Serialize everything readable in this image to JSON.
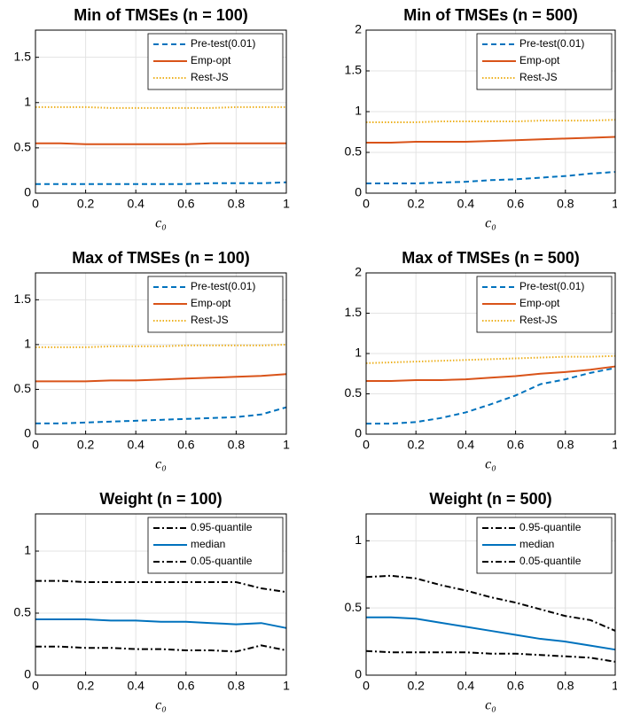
{
  "chart_data": [
    {
      "type": "line",
      "title": "Min of TMSEs (n = 100)",
      "xlabel": "c₀",
      "grid": true,
      "legend": "upper right",
      "x": [
        0,
        0.1,
        0.2,
        0.3,
        0.4,
        0.5,
        0.6,
        0.7,
        0.8,
        0.9,
        1
      ],
      "xlim": [
        0,
        1
      ],
      "xticks": [
        0,
        0.2,
        0.4,
        0.6,
        0.8,
        1
      ],
      "ylim": [
        0,
        1.8
      ],
      "yticks": [
        0,
        0.5,
        1,
        1.5
      ],
      "series": [
        {
          "name": "Pre-test(0.01)",
          "color": "#0072bd",
          "style": "dashed",
          "values": [
            0.1,
            0.1,
            0.1,
            0.1,
            0.1,
            0.1,
            0.1,
            0.11,
            0.11,
            0.11,
            0.12
          ]
        },
        {
          "name": "Emp-opt",
          "color": "#d95319",
          "style": "solid",
          "values": [
            0.55,
            0.55,
            0.54,
            0.54,
            0.54,
            0.54,
            0.54,
            0.55,
            0.55,
            0.55,
            0.55
          ]
        },
        {
          "name": "Rest-JS",
          "color": "#edb120",
          "style": "dotted",
          "values": [
            0.95,
            0.95,
            0.95,
            0.94,
            0.94,
            0.94,
            0.94,
            0.94,
            0.95,
            0.95,
            0.95
          ]
        }
      ]
    },
    {
      "type": "line",
      "title": "Min of TMSEs (n = 500)",
      "xlabel": "c₀",
      "grid": true,
      "legend": "upper right",
      "x": [
        0,
        0.1,
        0.2,
        0.3,
        0.4,
        0.5,
        0.6,
        0.7,
        0.8,
        0.9,
        1
      ],
      "xlim": [
        0,
        1
      ],
      "xticks": [
        0,
        0.2,
        0.4,
        0.6,
        0.8,
        1
      ],
      "ylim": [
        0,
        2
      ],
      "yticks": [
        0,
        0.5,
        1,
        1.5,
        2
      ],
      "series": [
        {
          "name": "Pre-test(0.01)",
          "color": "#0072bd",
          "style": "dashed",
          "values": [
            0.12,
            0.12,
            0.12,
            0.13,
            0.14,
            0.16,
            0.17,
            0.19,
            0.21,
            0.24,
            0.26
          ]
        },
        {
          "name": "Emp-opt",
          "color": "#d95319",
          "style": "solid",
          "values": [
            0.62,
            0.62,
            0.63,
            0.63,
            0.63,
            0.64,
            0.65,
            0.66,
            0.67,
            0.68,
            0.69
          ]
        },
        {
          "name": "Rest-JS",
          "color": "#edb120",
          "style": "dotted",
          "values": [
            0.87,
            0.87,
            0.87,
            0.88,
            0.88,
            0.88,
            0.88,
            0.89,
            0.89,
            0.89,
            0.9
          ]
        }
      ]
    },
    {
      "type": "line",
      "title": "Max of TMSEs (n = 100)",
      "xlabel": "c₀",
      "grid": true,
      "legend": "upper right",
      "x": [
        0,
        0.1,
        0.2,
        0.3,
        0.4,
        0.5,
        0.6,
        0.7,
        0.8,
        0.9,
        1
      ],
      "xlim": [
        0,
        1
      ],
      "xticks": [
        0,
        0.2,
        0.4,
        0.6,
        0.8,
        1
      ],
      "ylim": [
        0,
        1.8
      ],
      "yticks": [
        0,
        0.5,
        1,
        1.5
      ],
      "series": [
        {
          "name": "Pre-test(0.01)",
          "color": "#0072bd",
          "style": "dashed",
          "values": [
            0.12,
            0.12,
            0.13,
            0.14,
            0.15,
            0.16,
            0.17,
            0.18,
            0.19,
            0.22,
            0.3
          ]
        },
        {
          "name": "Emp-opt",
          "color": "#d95319",
          "style": "solid",
          "values": [
            0.59,
            0.59,
            0.59,
            0.6,
            0.6,
            0.61,
            0.62,
            0.63,
            0.64,
            0.65,
            0.67
          ]
        },
        {
          "name": "Rest-JS",
          "color": "#edb120",
          "style": "dotted",
          "values": [
            0.97,
            0.97,
            0.97,
            0.98,
            0.98,
            0.98,
            0.99,
            0.99,
            0.99,
            0.99,
            1.0
          ]
        }
      ]
    },
    {
      "type": "line",
      "title": "Max of TMSEs (n = 500)",
      "xlabel": "c₀",
      "grid": true,
      "legend": "upper right",
      "x": [
        0,
        0.1,
        0.2,
        0.3,
        0.4,
        0.5,
        0.6,
        0.7,
        0.8,
        0.9,
        1
      ],
      "xlim": [
        0,
        1
      ],
      "xticks": [
        0,
        0.2,
        0.4,
        0.6,
        0.8,
        1
      ],
      "ylim": [
        0,
        2
      ],
      "yticks": [
        0,
        0.5,
        1,
        1.5,
        2
      ],
      "series": [
        {
          "name": "Pre-test(0.01)",
          "color": "#0072bd",
          "style": "dashed",
          "values": [
            0.13,
            0.13,
            0.15,
            0.2,
            0.27,
            0.37,
            0.48,
            0.62,
            0.68,
            0.76,
            0.82
          ]
        },
        {
          "name": "Emp-opt",
          "color": "#d95319",
          "style": "solid",
          "values": [
            0.66,
            0.66,
            0.67,
            0.67,
            0.68,
            0.7,
            0.72,
            0.75,
            0.77,
            0.8,
            0.84
          ]
        },
        {
          "name": "Rest-JS",
          "color": "#edb120",
          "style": "dotted",
          "values": [
            0.88,
            0.89,
            0.9,
            0.91,
            0.92,
            0.93,
            0.94,
            0.95,
            0.96,
            0.96,
            0.97
          ]
        }
      ]
    },
    {
      "type": "line",
      "title": "Weight (n = 100)",
      "xlabel": "c₀",
      "grid": true,
      "legend": "upper right",
      "x": [
        0,
        0.1,
        0.2,
        0.3,
        0.4,
        0.5,
        0.6,
        0.7,
        0.8,
        0.9,
        1
      ],
      "xlim": [
        0,
        1
      ],
      "xticks": [
        0,
        0.2,
        0.4,
        0.6,
        0.8,
        1
      ],
      "ylim": [
        0,
        1.3
      ],
      "yticks": [
        0,
        0.5,
        1
      ],
      "series": [
        {
          "name": "0.95-quantile",
          "color": "#000000",
          "style": "dashdot",
          "values": [
            0.76,
            0.76,
            0.75,
            0.75,
            0.75,
            0.75,
            0.75,
            0.75,
            0.75,
            0.7,
            0.67
          ]
        },
        {
          "name": "median",
          "color": "#0072bd",
          "style": "solid",
          "values": [
            0.45,
            0.45,
            0.45,
            0.44,
            0.44,
            0.43,
            0.43,
            0.42,
            0.41,
            0.42,
            0.38
          ]
        },
        {
          "name": "0.05-quantile",
          "color": "#000000",
          "style": "dashdot",
          "values": [
            0.23,
            0.23,
            0.22,
            0.22,
            0.21,
            0.21,
            0.2,
            0.2,
            0.19,
            0.24,
            0.2
          ]
        }
      ]
    },
    {
      "type": "line",
      "title": "Weight (n = 500)",
      "xlabel": "c₀",
      "grid": true,
      "legend": "upper right",
      "x": [
        0,
        0.1,
        0.2,
        0.3,
        0.4,
        0.5,
        0.6,
        0.7,
        0.8,
        0.9,
        1
      ],
      "xlim": [
        0,
        1
      ],
      "xticks": [
        0,
        0.2,
        0.4,
        0.6,
        0.8,
        1
      ],
      "ylim": [
        0,
        1.2
      ],
      "yticks": [
        0,
        0.5,
        1
      ],
      "series": [
        {
          "name": "0.95-quantile",
          "color": "#000000",
          "style": "dashdot",
          "values": [
            0.73,
            0.74,
            0.72,
            0.67,
            0.63,
            0.58,
            0.54,
            0.49,
            0.44,
            0.41,
            0.33
          ]
        },
        {
          "name": "median",
          "color": "#0072bd",
          "style": "solid",
          "values": [
            0.43,
            0.43,
            0.42,
            0.39,
            0.36,
            0.33,
            0.3,
            0.27,
            0.25,
            0.22,
            0.19
          ]
        },
        {
          "name": "0.05-quantile",
          "color": "#000000",
          "style": "dashdot",
          "values": [
            0.18,
            0.17,
            0.17,
            0.17,
            0.17,
            0.16,
            0.16,
            0.15,
            0.14,
            0.13,
            0.1
          ]
        }
      ]
    }
  ]
}
